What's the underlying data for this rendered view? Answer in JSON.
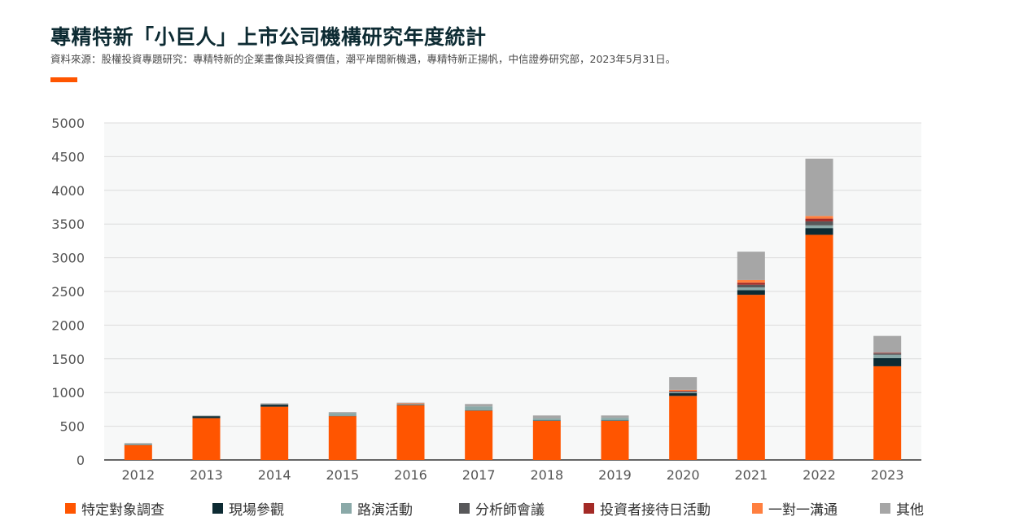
{
  "header": {
    "title": "專精特新「小巨人」上市公司機構研究年度統計",
    "source": "資料來源：股權投資專題研究：專精特新的企業畫像與投資價值，潮平岸闊新機遇，專精特新正揚帆，中信證券研究部，2023年5月31日。"
  },
  "colors": {
    "accent": "#ff5500",
    "title": "#0d2b33",
    "plot_bg": "#f7f8f8",
    "grid": "#dcdcdc"
  },
  "chart_data": {
    "type": "bar",
    "stacked": true,
    "categories": [
      "2012",
      "2013",
      "2014",
      "2015",
      "2016",
      "2017",
      "2018",
      "2019",
      "2020",
      "2021",
      "2022",
      "2023"
    ],
    "ylim": [
      0,
      5000
    ],
    "yticks": [
      0,
      500,
      1000,
      1500,
      2000,
      2500,
      3000,
      3500,
      4000,
      4500,
      5000
    ],
    "grid": true,
    "legend_position": "bottom",
    "series": [
      {
        "name": "特定對象調查",
        "color": "#ff5500",
        "values": [
          220,
          620,
          790,
          650,
          810,
          730,
          580,
          580,
          950,
          2450,
          3340,
          1390
        ]
      },
      {
        "name": "現場參觀",
        "color": "#0d2b33",
        "values": [
          5,
          30,
          30,
          5,
          5,
          5,
          5,
          5,
          40,
          70,
          100,
          120
        ]
      },
      {
        "name": "路演活動",
        "color": "#8aa9a8",
        "values": [
          15,
          5,
          5,
          40,
          10,
          60,
          30,
          40,
          15,
          40,
          40,
          50
        ]
      },
      {
        "name": "分析師會議",
        "color": "#58585a",
        "values": [
          0,
          0,
          5,
          0,
          5,
          0,
          0,
          0,
          10,
          40,
          60,
          20
        ]
      },
      {
        "name": "投資者接待日活動",
        "color": "#a32a26",
        "values": [
          0,
          0,
          0,
          0,
          0,
          0,
          0,
          0,
          10,
          30,
          40,
          10
        ]
      },
      {
        "name": "一對一溝通",
        "color": "#ff7f3f",
        "values": [
          0,
          0,
          0,
          0,
          10,
          0,
          0,
          0,
          15,
          40,
          40,
          0
        ]
      },
      {
        "name": "其他",
        "color": "#a6a6a6",
        "values": [
          10,
          5,
          10,
          15,
          10,
          35,
          45,
          35,
          190,
          420,
          850,
          250
        ]
      }
    ]
  }
}
